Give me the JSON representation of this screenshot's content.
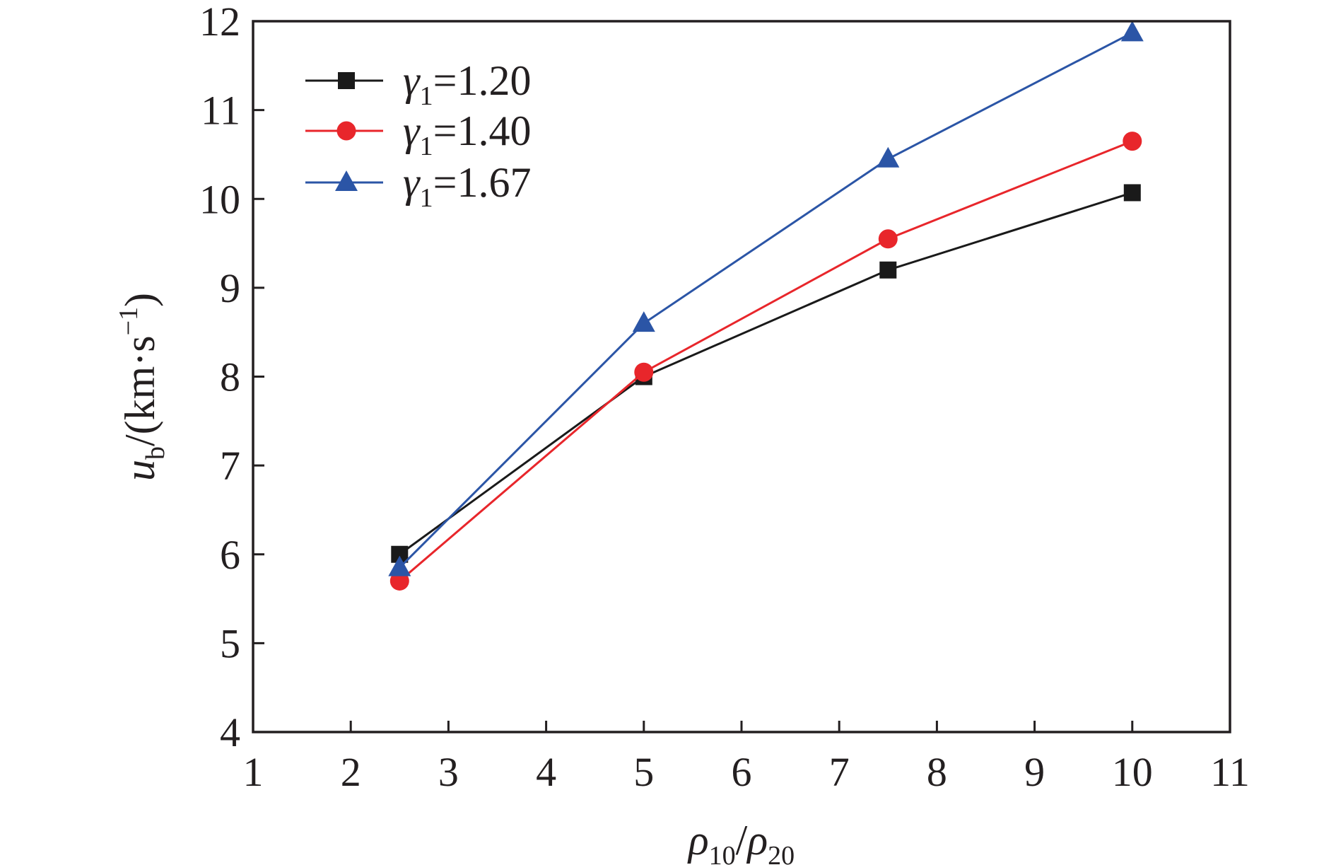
{
  "chart_data": {
    "type": "line",
    "x": [
      2.5,
      5,
      7.5,
      10
    ],
    "xlim": [
      1,
      11
    ],
    "ylim": [
      4,
      12
    ],
    "xticks": [
      "1",
      "2",
      "3",
      "4",
      "5",
      "6",
      "7",
      "8",
      "9",
      "10",
      "11"
    ],
    "yticks": [
      "4",
      "5",
      "6",
      "7",
      "8",
      "9",
      "10",
      "11",
      "12"
    ],
    "xlabel": {
      "main": "ρ",
      "sub": "10",
      "sep": "/",
      "main2": "ρ",
      "sub2": "20"
    },
    "ylabel": {
      "main": "u",
      "sub": "b",
      "rest": "/(km·s",
      "sup": "−1",
      "close": ")"
    },
    "grid": false,
    "legend_position": "top-left",
    "series": [
      {
        "name": "γ1=1.20",
        "name_parts": {
          "sym": "γ",
          "sub": "1",
          "rest": "=1.20"
        },
        "marker": "square",
        "color": "#1a1a1a",
        "values": [
          6.0,
          8.0,
          9.2,
          10.07
        ]
      },
      {
        "name": "γ1=1.40",
        "name_parts": {
          "sym": "γ",
          "sub": "1",
          "rest": "=1.40"
        },
        "marker": "circle",
        "color": "#e8262b",
        "values": [
          5.7,
          8.05,
          9.55,
          10.65
        ]
      },
      {
        "name": "γ1=1.67",
        "name_parts": {
          "sym": "γ",
          "sub": "1",
          "rest": "=1.67"
        },
        "marker": "triangle",
        "color": "#2b55a6",
        "values": [
          5.85,
          8.6,
          10.45,
          11.87
        ]
      }
    ]
  }
}
